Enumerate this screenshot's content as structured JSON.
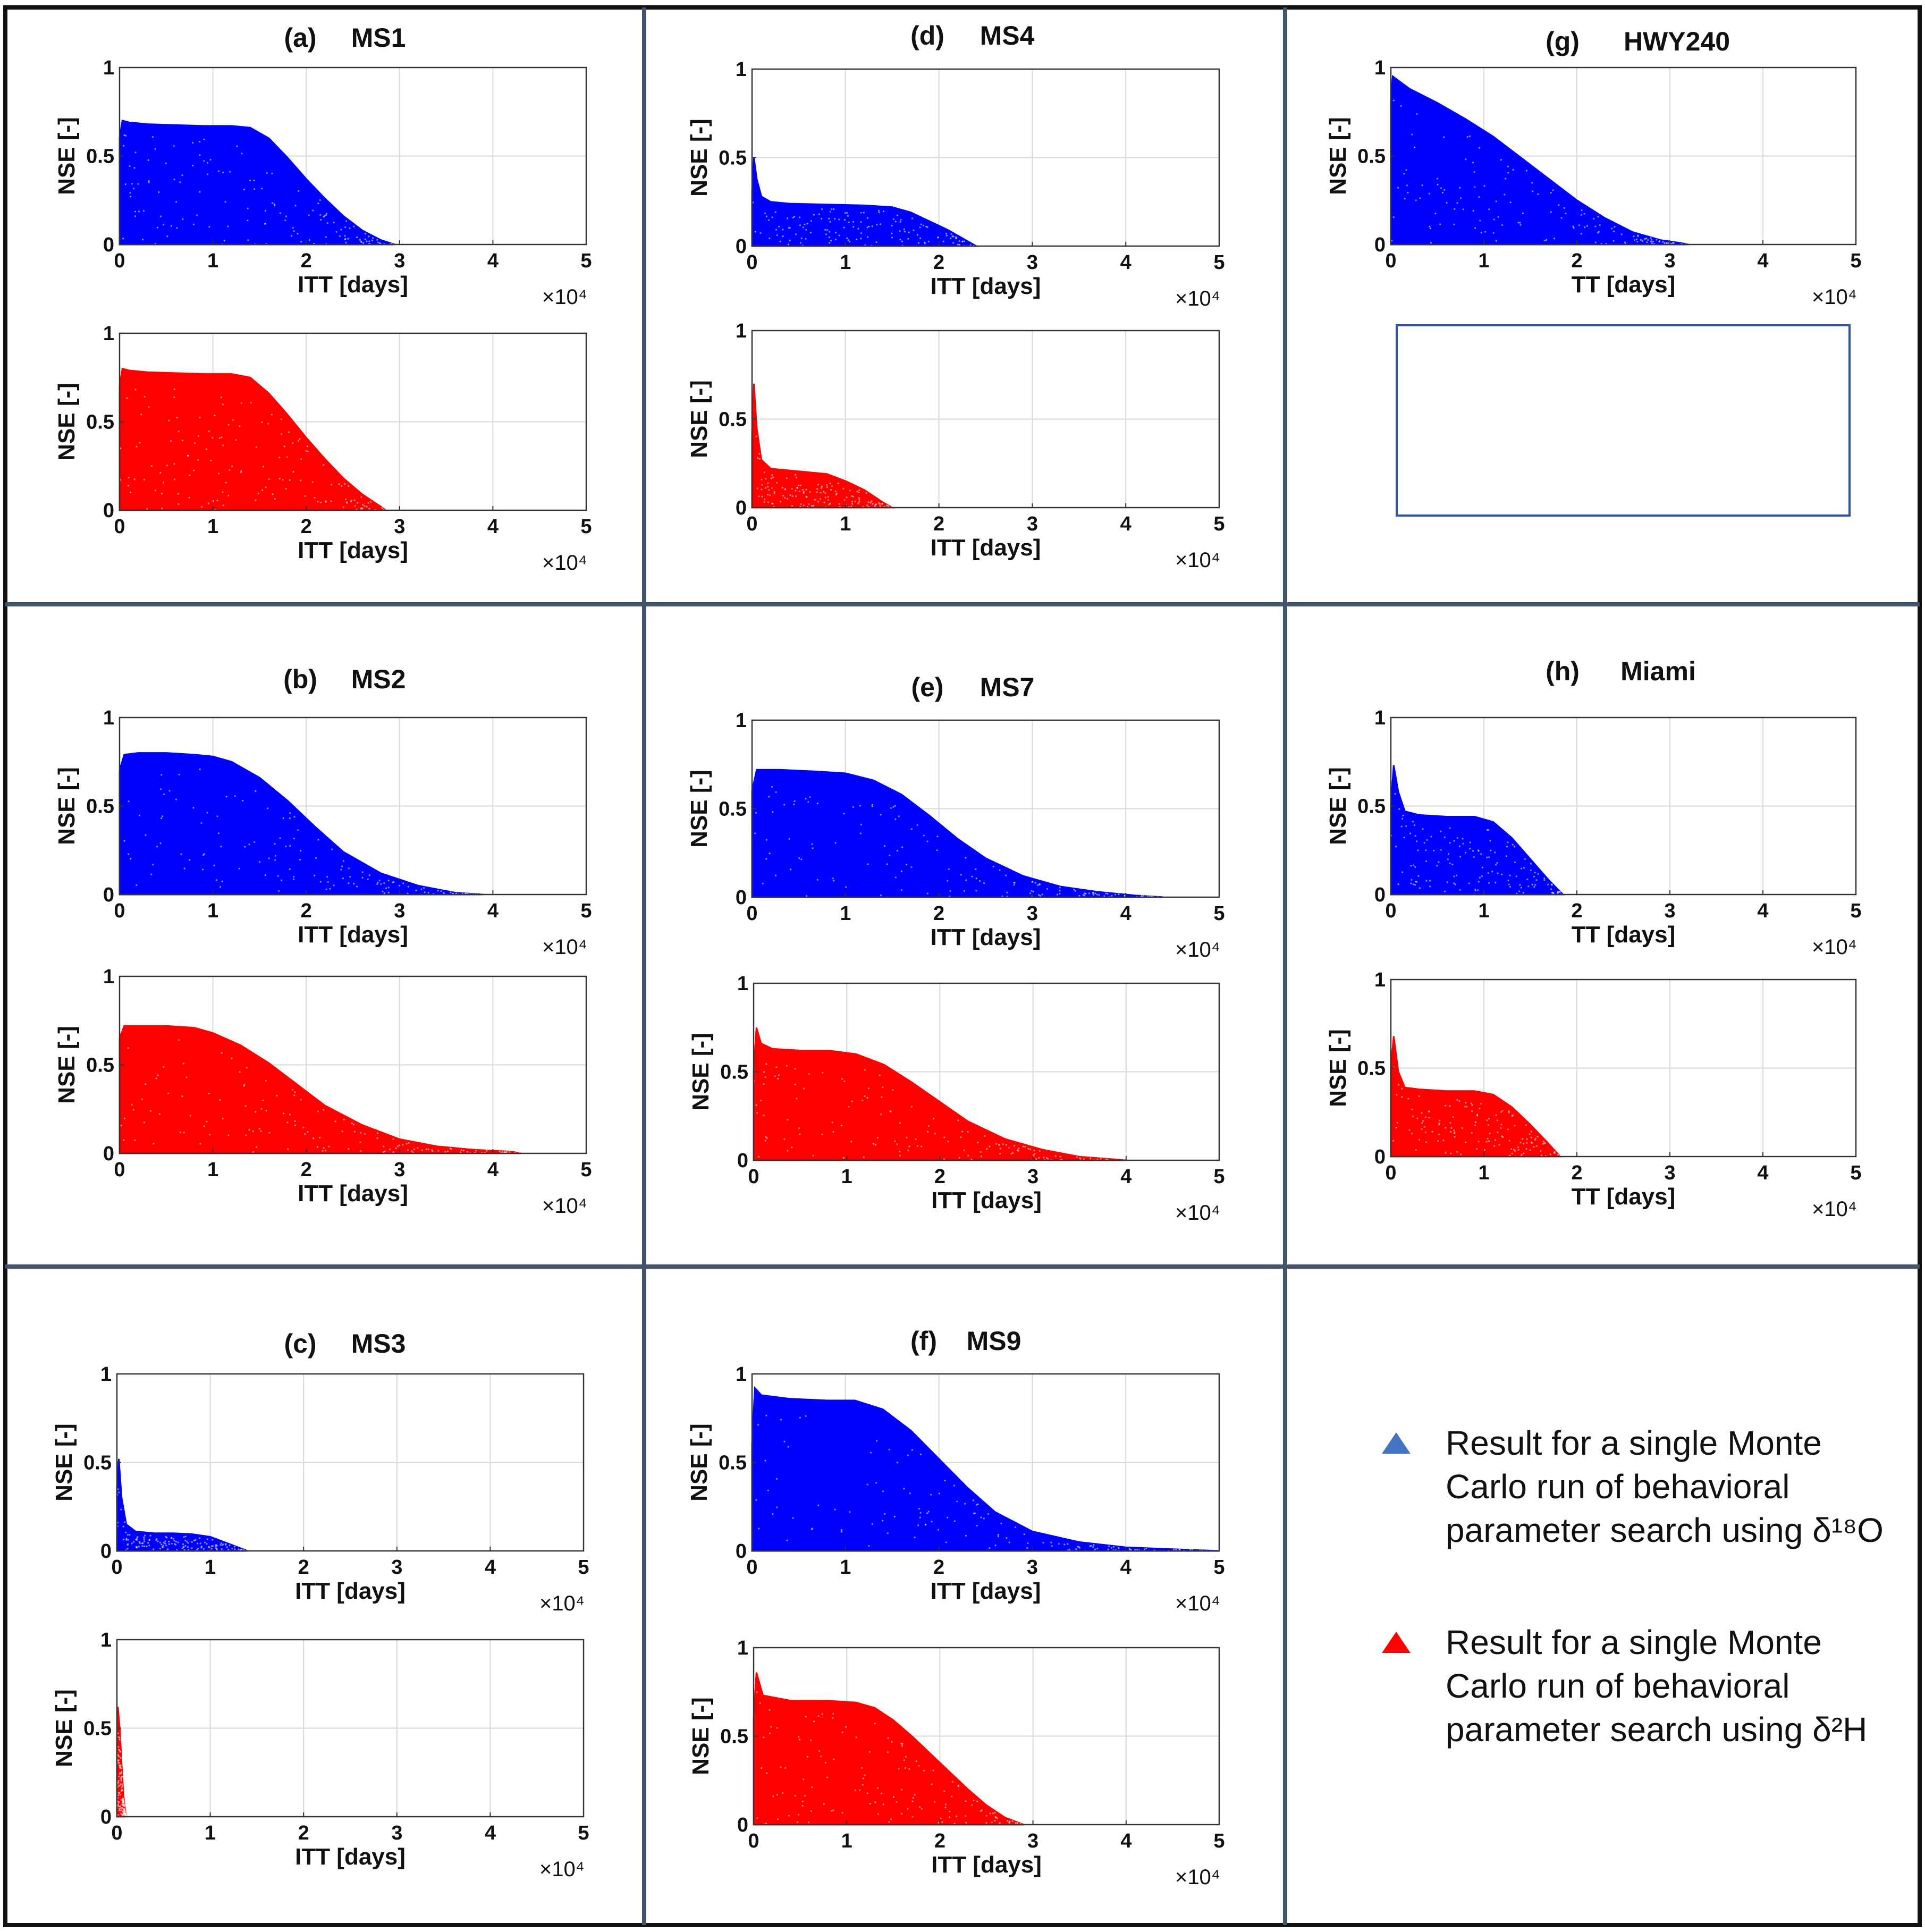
{
  "figure": {
    "colors": {
      "o18": "#0000ff",
      "h2": "#ff0000",
      "legend_blue": "#4472c4",
      "legend_red": "#ff0000",
      "grid": "#d9d9d9",
      "frame": "#44546a"
    }
  },
  "legend": {
    "o18_text": [
      "Result for a single Monte",
      "Carlo run of behavioral",
      "parameter search using δ¹⁸O"
    ],
    "h2_text": [
      "Result for a single Monte",
      "Carlo run of behavioral",
      "parameter search using δ²H"
    ]
  },
  "chart_data": [
    {
      "id": "a1",
      "panel_label": "(a)",
      "site": "MS1",
      "type": "area",
      "isotope": "δ18O",
      "ylabel": "NSE [-]",
      "xlabel": "ITT [days]",
      "x_exponent": "×10⁴",
      "xlim": [
        0,
        5
      ],
      "ylim": [
        0,
        1
      ],
      "x_ticks": [
        "0",
        "1",
        "2",
        "3",
        "4",
        "5"
      ],
      "y_ticks": [
        "0",
        "0.5",
        "1"
      ],
      "envelope_x": [
        0,
        0.03,
        0.1,
        0.3,
        0.6,
        0.9,
        1.2,
        1.4,
        1.6,
        1.8,
        2.0,
        2.2,
        2.4,
        2.6,
        2.8,
        2.95
      ],
      "envelope_y": [
        0.6,
        0.7,
        0.69,
        0.68,
        0.675,
        0.67,
        0.67,
        0.66,
        0.6,
        0.49,
        0.37,
        0.26,
        0.16,
        0.08,
        0.025,
        0
      ]
    },
    {
      "id": "a2",
      "panel_label": "",
      "site": "",
      "type": "area",
      "isotope": "δ2H",
      "ylabel": "NSE [-]",
      "xlabel": "ITT [days]",
      "x_exponent": "×10⁴",
      "xlim": [
        0,
        5
      ],
      "ylim": [
        0,
        1
      ],
      "x_ticks": [
        "0",
        "1",
        "2",
        "3",
        "4",
        "5"
      ],
      "y_ticks": [
        "0",
        "0.5",
        "1"
      ],
      "envelope_x": [
        0,
        0.03,
        0.1,
        0.3,
        0.6,
        0.9,
        1.2,
        1.4,
        1.6,
        1.8,
        2.0,
        2.2,
        2.4,
        2.6,
        2.8,
        2.85
      ],
      "envelope_y": [
        0.7,
        0.8,
        0.79,
        0.78,
        0.775,
        0.77,
        0.77,
        0.75,
        0.66,
        0.54,
        0.41,
        0.29,
        0.18,
        0.09,
        0.02,
        0
      ]
    },
    {
      "id": "d1",
      "panel_label": "(d)",
      "site": "MS4",
      "type": "area",
      "isotope": "δ18O",
      "ylabel": "NSE [-]",
      "xlabel": "ITT [days]",
      "x_exponent": "×10⁴",
      "xlim": [
        0,
        5
      ],
      "ylim": [
        0,
        1
      ],
      "x_ticks": [
        "0",
        "1",
        "2",
        "3",
        "4",
        "5"
      ],
      "y_ticks": [
        "0",
        "0.5",
        "1"
      ],
      "envelope_x": [
        0,
        0.02,
        0.05,
        0.1,
        0.2,
        0.4,
        0.8,
        1.2,
        1.5,
        1.7,
        1.9,
        2.1,
        2.3,
        2.4
      ],
      "envelope_y": [
        0.3,
        0.5,
        0.38,
        0.28,
        0.25,
        0.24,
        0.235,
        0.23,
        0.22,
        0.19,
        0.14,
        0.09,
        0.03,
        0
      ]
    },
    {
      "id": "d2",
      "panel_label": "",
      "site": "",
      "type": "area",
      "isotope": "δ2H",
      "ylabel": "NSE [-]",
      "xlabel": "ITT [days]",
      "x_exponent": "×10⁴",
      "xlim": [
        0,
        5
      ],
      "ylim": [
        0,
        1
      ],
      "x_ticks": [
        "0",
        "1",
        "2",
        "3",
        "4",
        "5"
      ],
      "y_ticks": [
        "0",
        "0.5",
        "1"
      ],
      "envelope_x": [
        0,
        0.02,
        0.05,
        0.1,
        0.2,
        0.4,
        0.6,
        0.8,
        1.0,
        1.2,
        1.4,
        1.5
      ],
      "envelope_y": [
        0.4,
        0.7,
        0.45,
        0.27,
        0.22,
        0.21,
        0.2,
        0.19,
        0.15,
        0.1,
        0.03,
        0
      ]
    },
    {
      "id": "g1",
      "panel_label": "(g)",
      "site": "HWY240",
      "type": "area",
      "isotope": "δ18O",
      "ylabel": "NSE [-]",
      "xlabel": "TT [days]",
      "x_exponent": "×10⁴",
      "xlim": [
        0,
        5
      ],
      "ylim": [
        0,
        1
      ],
      "x_ticks": [
        "0",
        "1",
        "2",
        "3",
        "4",
        "5"
      ],
      "y_ticks": [
        "0",
        "0.5",
        "1"
      ],
      "envelope_x": [
        0,
        0.02,
        0.2,
        0.5,
        0.8,
        1.1,
        1.4,
        1.7,
        2.0,
        2.3,
        2.6,
        2.9,
        3.1,
        3.2
      ],
      "envelope_y": [
        0.8,
        0.95,
        0.88,
        0.8,
        0.71,
        0.61,
        0.49,
        0.37,
        0.25,
        0.15,
        0.07,
        0.025,
        0.01,
        0
      ]
    },
    {
      "id": "b1",
      "panel_label": "(b)",
      "site": "MS2",
      "type": "area",
      "isotope": "δ18O",
      "ylabel": "NSE [-]",
      "xlabel": "ITT [days]",
      "x_exponent": "×10⁴",
      "xlim": [
        0,
        5
      ],
      "ylim": [
        0,
        1
      ],
      "x_ticks": [
        "0",
        "1",
        "2",
        "3",
        "4",
        "5"
      ],
      "y_ticks": [
        "0",
        "0.5",
        "1"
      ],
      "envelope_x": [
        0,
        0.05,
        0.2,
        0.5,
        0.8,
        1.0,
        1.2,
        1.5,
        1.8,
        2.1,
        2.4,
        2.8,
        3.2,
        3.6,
        3.9
      ],
      "envelope_y": [
        0.7,
        0.79,
        0.8,
        0.8,
        0.79,
        0.78,
        0.75,
        0.66,
        0.53,
        0.38,
        0.24,
        0.12,
        0.05,
        0.01,
        0
      ]
    },
    {
      "id": "b2",
      "panel_label": "",
      "site": "",
      "type": "area",
      "isotope": "δ2H",
      "ylabel": "NSE [-]",
      "xlabel": "ITT [days]",
      "x_exponent": "×10⁴",
      "xlim": [
        0,
        5
      ],
      "ylim": [
        0,
        1
      ],
      "x_ticks": [
        "0",
        "1",
        "2",
        "3",
        "4",
        "5"
      ],
      "y_ticks": [
        "0",
        "0.5",
        "1"
      ],
      "envelope_x": [
        0,
        0.05,
        0.2,
        0.5,
        0.8,
        1.0,
        1.3,
        1.6,
        1.9,
        2.2,
        2.6,
        3.0,
        3.4,
        3.8,
        4.2,
        4.3
      ],
      "envelope_y": [
        0.65,
        0.72,
        0.72,
        0.72,
        0.71,
        0.68,
        0.61,
        0.51,
        0.39,
        0.27,
        0.16,
        0.08,
        0.04,
        0.02,
        0.01,
        0
      ]
    },
    {
      "id": "e1",
      "panel_label": "(e)",
      "site": "MS7",
      "type": "area",
      "isotope": "δ18O",
      "ylabel": "NSE [-]",
      "xlabel": "ITT [days]",
      "x_exponent": "×10⁴",
      "xlim": [
        0,
        5
      ],
      "ylim": [
        0,
        1
      ],
      "x_ticks": [
        "0",
        "1",
        "2",
        "3",
        "4",
        "5"
      ],
      "y_ticks": [
        "0",
        "0.5",
        "1"
      ],
      "envelope_x": [
        0,
        0.05,
        0.3,
        0.7,
        1.0,
        1.3,
        1.6,
        1.9,
        2.2,
        2.5,
        2.9,
        3.3,
        3.7,
        4.1,
        4.4
      ],
      "envelope_y": [
        0.6,
        0.72,
        0.72,
        0.71,
        0.7,
        0.66,
        0.58,
        0.46,
        0.33,
        0.22,
        0.12,
        0.06,
        0.03,
        0.01,
        0
      ]
    },
    {
      "id": "e2",
      "panel_label": "",
      "site": "",
      "type": "area",
      "isotope": "δ2H",
      "ylabel": "NSE [-]",
      "xlabel": "ITT [days]",
      "x_exponent": "×10⁴",
      "xlim": [
        0,
        5
      ],
      "ylim": [
        0,
        1
      ],
      "x_ticks": [
        "0",
        "1",
        "2",
        "3",
        "4",
        "5"
      ],
      "y_ticks": [
        "0",
        "0.5",
        "1"
      ],
      "envelope_x": [
        0,
        0.03,
        0.08,
        0.2,
        0.5,
        0.8,
        1.1,
        1.4,
        1.7,
        2.0,
        2.3,
        2.7,
        3.1,
        3.5,
        4.0
      ],
      "envelope_y": [
        0.5,
        0.75,
        0.66,
        0.63,
        0.62,
        0.62,
        0.6,
        0.54,
        0.44,
        0.33,
        0.22,
        0.12,
        0.06,
        0.02,
        0
      ]
    },
    {
      "id": "h1",
      "panel_label": "(h)",
      "site": "Miami",
      "type": "area",
      "isotope": "δ18O",
      "ylabel": "NSE [-]",
      "xlabel": "TT [days]",
      "x_exponent": "×10⁴",
      "xlim": [
        0,
        5
      ],
      "ylim": [
        0,
        1
      ],
      "x_ticks": [
        "0",
        "1",
        "2",
        "3",
        "4",
        "5"
      ],
      "y_ticks": [
        "0",
        "0.5",
        "1"
      ],
      "envelope_x": [
        0,
        0.03,
        0.08,
        0.15,
        0.3,
        0.6,
        0.9,
        1.1,
        1.3,
        1.5,
        1.7,
        1.85
      ],
      "envelope_y": [
        0.5,
        0.73,
        0.58,
        0.47,
        0.45,
        0.44,
        0.44,
        0.41,
        0.32,
        0.2,
        0.08,
        0
      ]
    },
    {
      "id": "h2",
      "panel_label": "",
      "site": "",
      "type": "area",
      "isotope": "δ2H",
      "ylabel": "NSE [-]",
      "xlabel": "TT [days]",
      "x_exponent": "×10⁴",
      "xlim": [
        0,
        5
      ],
      "ylim": [
        0,
        1
      ],
      "x_ticks": [
        "0",
        "1",
        "2",
        "3",
        "4",
        "5"
      ],
      "y_ticks": [
        "0",
        "0.5",
        "1"
      ],
      "envelope_x": [
        0,
        0.03,
        0.08,
        0.15,
        0.3,
        0.6,
        0.9,
        1.1,
        1.3,
        1.5,
        1.7,
        1.82
      ],
      "envelope_y": [
        0.5,
        0.68,
        0.48,
        0.39,
        0.38,
        0.37,
        0.37,
        0.35,
        0.28,
        0.18,
        0.07,
        0
      ]
    },
    {
      "id": "c1",
      "panel_label": "(c)",
      "site": "MS3",
      "type": "area",
      "isotope": "δ18O",
      "ylabel": "NSE [-]",
      "xlabel": "ITT [days]",
      "x_exponent": "×10⁴",
      "xlim": [
        0,
        5
      ],
      "ylim": [
        0,
        1
      ],
      "x_ticks": [
        "0",
        "1",
        "2",
        "3",
        "4",
        "5"
      ],
      "y_ticks": [
        "0",
        "0.5",
        "1"
      ],
      "envelope_x": [
        0,
        0.02,
        0.05,
        0.1,
        0.2,
        0.4,
        0.6,
        0.8,
        1.0,
        1.2,
        1.4
      ],
      "envelope_y": [
        0.35,
        0.52,
        0.3,
        0.15,
        0.11,
        0.1,
        0.1,
        0.095,
        0.08,
        0.04,
        0
      ]
    },
    {
      "id": "c2",
      "panel_label": "",
      "site": "",
      "type": "area",
      "isotope": "δ2H",
      "ylabel": "NSE [-]",
      "xlabel": "ITT [days]",
      "x_exponent": "×10⁴",
      "xlim": [
        0,
        5
      ],
      "ylim": [
        0,
        1
      ],
      "x_ticks": [
        "0",
        "1",
        "2",
        "3",
        "4",
        "5"
      ],
      "y_ticks": [
        "0",
        "0.5",
        "1"
      ],
      "envelope_x": [
        0,
        0.01,
        0.03,
        0.05,
        0.07,
        0.09,
        0.1
      ],
      "envelope_y": [
        0.4,
        0.62,
        0.5,
        0.3,
        0.12,
        0.03,
        0
      ]
    },
    {
      "id": "f1",
      "panel_label": "(f)",
      "site": "MS9",
      "type": "area",
      "isotope": "δ18O",
      "ylabel": "NSE [-]",
      "xlabel": "ITT [days]",
      "x_exponent": "×10⁴",
      "xlim": [
        0,
        5
      ],
      "ylim": [
        0,
        1
      ],
      "x_ticks": [
        "0",
        "1",
        "2",
        "3",
        "4",
        "5"
      ],
      "y_ticks": [
        "0",
        "0.5",
        "1"
      ],
      "envelope_x": [
        0,
        0.03,
        0.1,
        0.4,
        0.8,
        1.1,
        1.4,
        1.7,
        2.0,
        2.3,
        2.6,
        3.0,
        3.5,
        4.0,
        4.5,
        5.0
      ],
      "envelope_y": [
        0.6,
        0.92,
        0.88,
        0.86,
        0.85,
        0.85,
        0.8,
        0.68,
        0.52,
        0.36,
        0.22,
        0.11,
        0.05,
        0.02,
        0.01,
        0
      ]
    },
    {
      "id": "f2",
      "panel_label": "",
      "site": "",
      "type": "area",
      "isotope": "δ2H",
      "ylabel": "NSE [-]",
      "xlabel": "ITT [days]",
      "x_exponent": "×10⁴",
      "xlim": [
        0,
        5
      ],
      "ylim": [
        0,
        1
      ],
      "x_ticks": [
        "0",
        "1",
        "2",
        "3",
        "4",
        "5"
      ],
      "y_ticks": [
        "0",
        "0.5",
        "1"
      ],
      "envelope_x": [
        0,
        0.03,
        0.1,
        0.4,
        0.8,
        1.1,
        1.3,
        1.5,
        1.7,
        1.9,
        2.1,
        2.3,
        2.5,
        2.7,
        2.9
      ],
      "envelope_y": [
        0.6,
        0.86,
        0.73,
        0.7,
        0.7,
        0.69,
        0.66,
        0.59,
        0.5,
        0.4,
        0.3,
        0.2,
        0.11,
        0.04,
        0
      ]
    }
  ]
}
